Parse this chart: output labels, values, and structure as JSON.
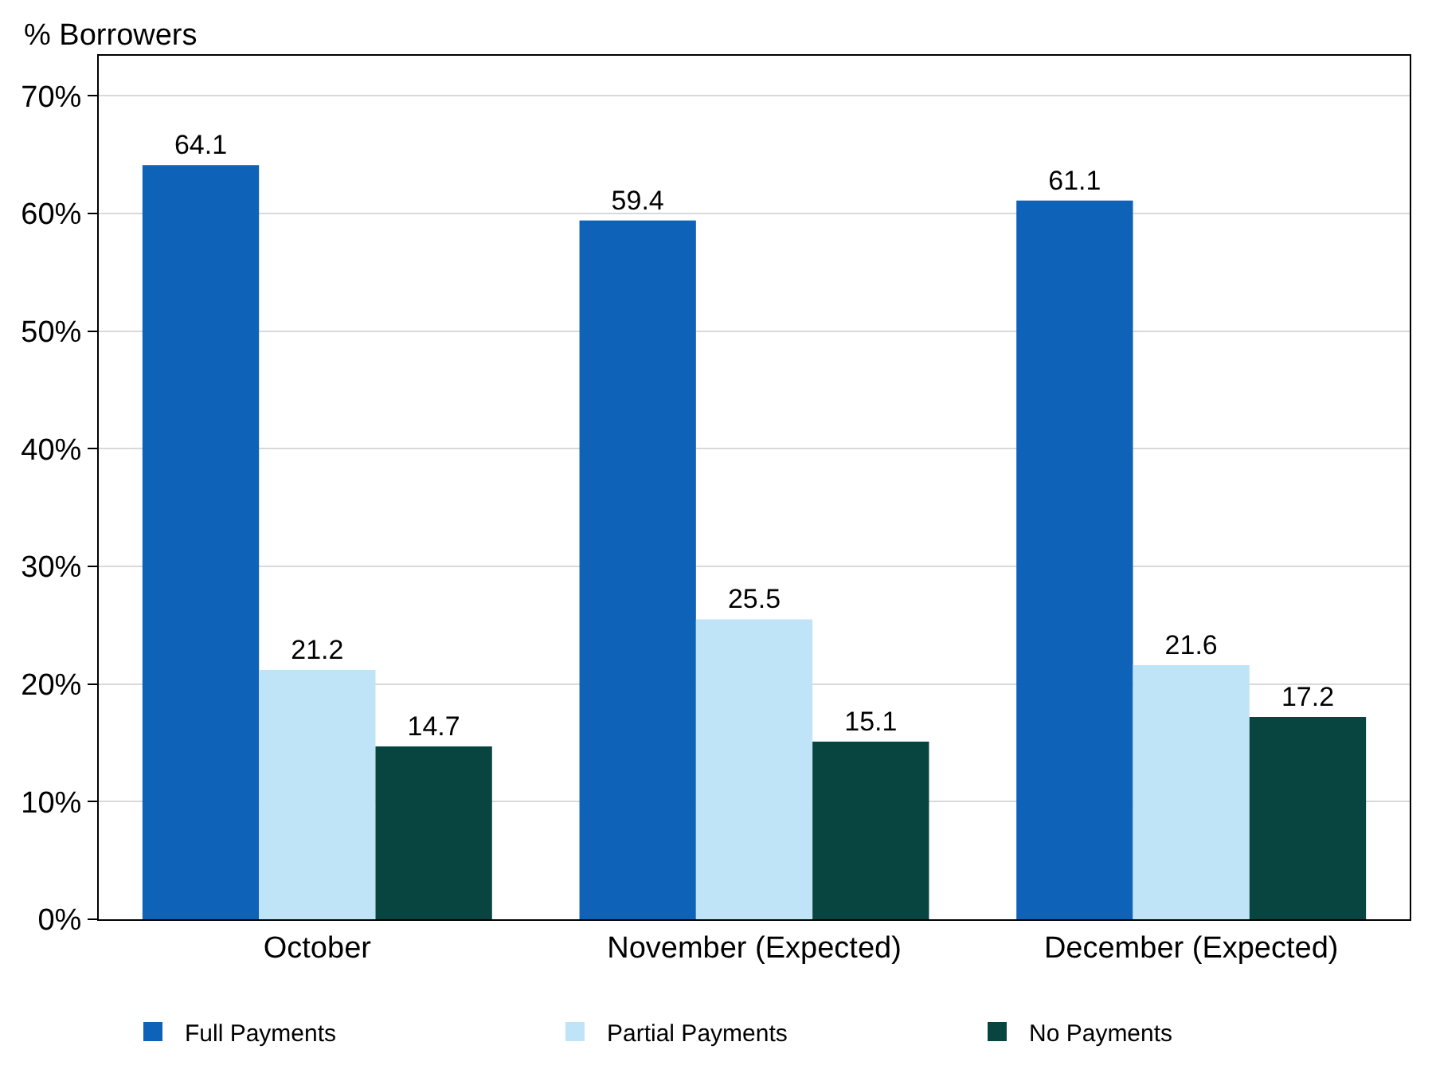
{
  "chart_data": {
    "type": "bar",
    "ylabel": "% Borrowers",
    "categories": [
      "October",
      "November (Expected)",
      "December (Expected)"
    ],
    "series": [
      {
        "name": "Full Payments",
        "color": "#0e62b8",
        "values": [
          64.1,
          59.4,
          61.1
        ]
      },
      {
        "name": "Partial Payments",
        "color": "#bfe4f8",
        "values": [
          21.2,
          25.5,
          21.6
        ]
      },
      {
        "name": "No Payments",
        "color": "#084540",
        "values": [
          14.7,
          15.1,
          17.2
        ]
      }
    ],
    "ylim": [
      0,
      73.4
    ],
    "yticks": [
      {
        "value": 0,
        "label": "0%"
      },
      {
        "value": 10,
        "label": "10%"
      },
      {
        "value": 20,
        "label": "20%"
      },
      {
        "value": 30,
        "label": "30%"
      },
      {
        "value": 40,
        "label": "40%"
      },
      {
        "value": 50,
        "label": "50%"
      },
      {
        "value": 60,
        "label": "60%"
      },
      {
        "value": 70,
        "label": "70%"
      }
    ],
    "grid": "y",
    "legend": "bottom",
    "data_labels": true
  }
}
